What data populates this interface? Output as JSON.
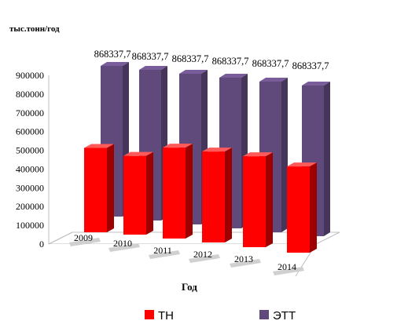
{
  "chart_data": {
    "type": "bar",
    "ylabel": "тыс.тонн/год",
    "xlabel": "Год",
    "categories": [
      "2009",
      "2010",
      "2011",
      "2012",
      "2013",
      "2014"
    ],
    "ylim": [
      0,
      900000
    ],
    "yticks": [
      "0",
      "100000",
      "200000",
      "300000",
      "400000",
      "500000",
      "600000",
      "700000",
      "800000",
      "900000"
    ],
    "series": [
      {
        "name": "ТН",
        "values": [
          450000,
          420000,
          485000,
          485000,
          485000,
          460000
        ],
        "color": "#ff0000"
      },
      {
        "name": "ЭТТ",
        "values": [
          868337.7,
          868337.7,
          868337.7,
          868337.7,
          868337.7,
          868337.7
        ],
        "color": "#604a7b",
        "data_labels": [
          "868337,7",
          "868337,7",
          "868337,7",
          "868337,7",
          "868337,7",
          "868337,7"
        ]
      }
    ],
    "legend_position": "bottom",
    "grid": false
  }
}
